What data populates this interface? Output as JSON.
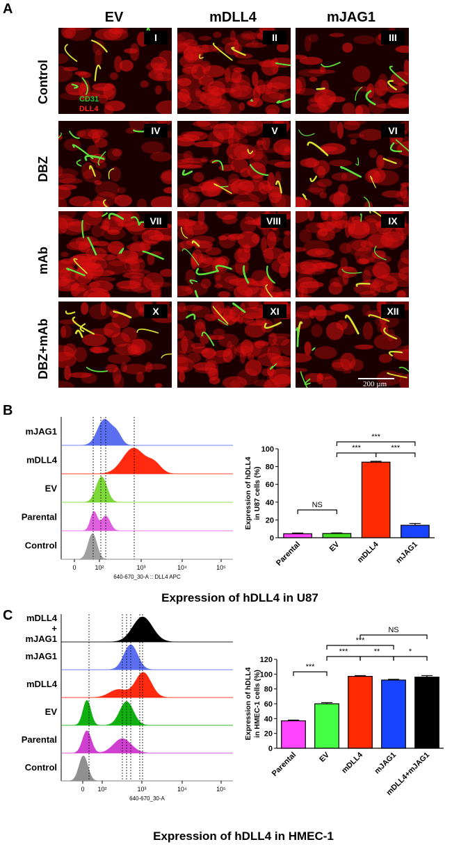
{
  "panel_a": {
    "letter": "A",
    "columns": [
      "EV",
      "mDLL4",
      "mJAG1"
    ],
    "rows": [
      "Control",
      "DBZ",
      "mAb",
      "DBZ+mAb"
    ],
    "numerals": [
      "I",
      "II",
      "III",
      "IV",
      "V",
      "VI",
      "VII",
      "VIII",
      "IX",
      "X",
      "XI",
      "XII"
    ],
    "legend": {
      "cd31": "CD31",
      "dll4": "DLL4"
    },
    "scale_bar": "200 µm",
    "colors": {
      "cd31": "#22c832",
      "dll4": "#e01010"
    }
  },
  "panel_b": {
    "letter": "B",
    "hist_rows": [
      "mJAG1",
      "mDLL4",
      "EV",
      "Parental",
      "Control"
    ],
    "hist_colors": [
      "#5b6ff0",
      "#ff2a10",
      "#7fd83a",
      "#e060e0",
      "#a0a0a0"
    ],
    "x_axis_label": "640-670_30-A :: DLL4 APC",
    "x_ticks": [
      "0",
      "10²",
      "10³",
      "10⁴",
      "10⁵"
    ],
    "title": "Expression of hDLL4 in U87"
  },
  "panel_c": {
    "letter": "C",
    "hist_rows": [
      "mDLL4\n+\nmJAG1",
      "mJAG1",
      "mDLL4",
      "EV",
      "Parental",
      "Control"
    ],
    "hist_row_lines": [
      [
        "mDLL4",
        "+",
        "mJAG1"
      ],
      [
        "mJAG1"
      ],
      [
        "mDLL4"
      ],
      [
        "EV"
      ],
      [
        "Parental"
      ],
      [
        "Control"
      ]
    ],
    "hist_colors": [
      "#000000",
      "#5b6ff0",
      "#ff2a10",
      "#10b010",
      "#d040d0",
      "#909090"
    ],
    "x_axis_label": "640-670_30-A",
    "x_ticks": [
      "0",
      "10²",
      "10³",
      "10⁴",
      "10⁵"
    ],
    "title": "Expression of hDLL4 in HMEC-1"
  },
  "chart_data": [
    {
      "type": "bar",
      "categories": [
        "Parental",
        "EV",
        "mDLL4",
        "mJAG1"
      ],
      "values": [
        4.5,
        4.8,
        85,
        14
      ],
      "errors": [
        0.8,
        0.6,
        1.0,
        2.0
      ],
      "colors": [
        "#ff44ff",
        "#44dd22",
        "#ff2a00",
        "#1844ff"
      ],
      "ylabel": "Expression of hDLL4\nin U87 cells (%)",
      "ylabel_lines": [
        "Expression of hDLL4",
        "in U87 cells (%)"
      ],
      "ylim": [
        0,
        100
      ],
      "yticks": [
        0,
        20,
        40,
        60,
        80,
        100
      ],
      "significance": [
        {
          "from": 0,
          "to": 1,
          "label": "NS",
          "level": 0
        },
        {
          "from": 1,
          "to": 2,
          "label": "***",
          "level": 1
        },
        {
          "from": 2,
          "to": 3,
          "label": "***",
          "level": 1
        },
        {
          "from": 1,
          "to": 3,
          "label": "***",
          "level": 2
        }
      ]
    },
    {
      "type": "bar",
      "categories": [
        "Parental",
        "EV",
        "mDLL4",
        "mJAG1",
        "mDLL4+mJAG1"
      ],
      "values": [
        37,
        60,
        97,
        92,
        96
      ],
      "errors": [
        1,
        1.5,
        1,
        1,
        2
      ],
      "colors": [
        "#ff44ff",
        "#44ff44",
        "#ff2a00",
        "#1844ff",
        "#000000"
      ],
      "ylabel": "Expression of hDLL4\nin HMEC-1 cells (%)",
      "ylabel_lines": [
        "Expression of hDLL4",
        "in HMEC-1 cells (%)"
      ],
      "ylim": [
        0,
        120
      ],
      "yticks": [
        0,
        20,
        40,
        60,
        80,
        100,
        120
      ],
      "significance": [
        {
          "from": 0,
          "to": 1,
          "label": "***",
          "level": 0
        },
        {
          "from": 1,
          "to": 2,
          "label": "***",
          "level": 1
        },
        {
          "from": 2,
          "to": 3,
          "label": "**",
          "level": 1
        },
        {
          "from": 3,
          "to": 4,
          "label": "*",
          "level": 1
        },
        {
          "from": 1,
          "to": 3,
          "label": "***",
          "level": 2
        },
        {
          "from": 2,
          "to": 4,
          "label": "NS",
          "level": 3
        }
      ]
    }
  ]
}
